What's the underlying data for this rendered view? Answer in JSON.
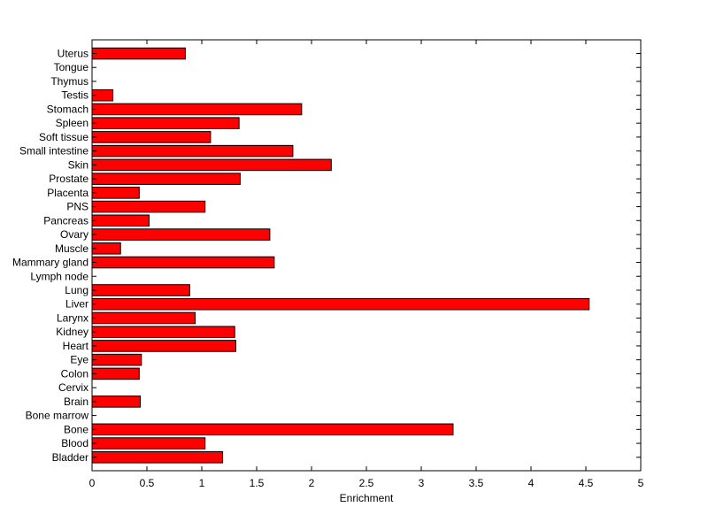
{
  "chart_data": {
    "type": "bar",
    "orientation": "horizontal",
    "title": "",
    "xlabel": "Enrichment",
    "ylabel": "",
    "xlim": [
      0,
      5
    ],
    "xticks": [
      0,
      0.5,
      1,
      1.5,
      2,
      2.5,
      3,
      3.5,
      4,
      4.5,
      5
    ],
    "xtick_labels": [
      "0",
      "0.5",
      "1",
      "1.5",
      "2",
      "2.5",
      "3",
      "3.5",
      "4",
      "4.5",
      "5"
    ],
    "grid": false,
    "legend": "none",
    "bar_color": "#ff0000",
    "bar_edge_color": "#000000",
    "categories": [
      "Uterus",
      "Tongue",
      "Thymus",
      "Testis",
      "Stomach",
      "Spleen",
      "Soft tissue",
      "Small intestine",
      "Skin",
      "Prostate",
      "Placenta",
      "PNS",
      "Pancreas",
      "Ovary",
      "Muscle",
      "Mammary gland",
      "Lymph node",
      "Lung",
      "Liver",
      "Larynx",
      "Kidney",
      "Heart",
      "Eye",
      "Colon",
      "Cervix",
      "Brain",
      "Bone marrow",
      "Bone",
      "Blood",
      "Bladder"
    ],
    "values": [
      0.85,
      0,
      0,
      0.19,
      1.91,
      1.34,
      1.08,
      1.83,
      2.18,
      1.35,
      0.43,
      1.03,
      0.52,
      1.62,
      0.26,
      1.66,
      0,
      0.89,
      4.53,
      0.94,
      1.3,
      1.31,
      0.45,
      0.43,
      0,
      0.44,
      0,
      3.29,
      1.03,
      1.19
    ]
  }
}
